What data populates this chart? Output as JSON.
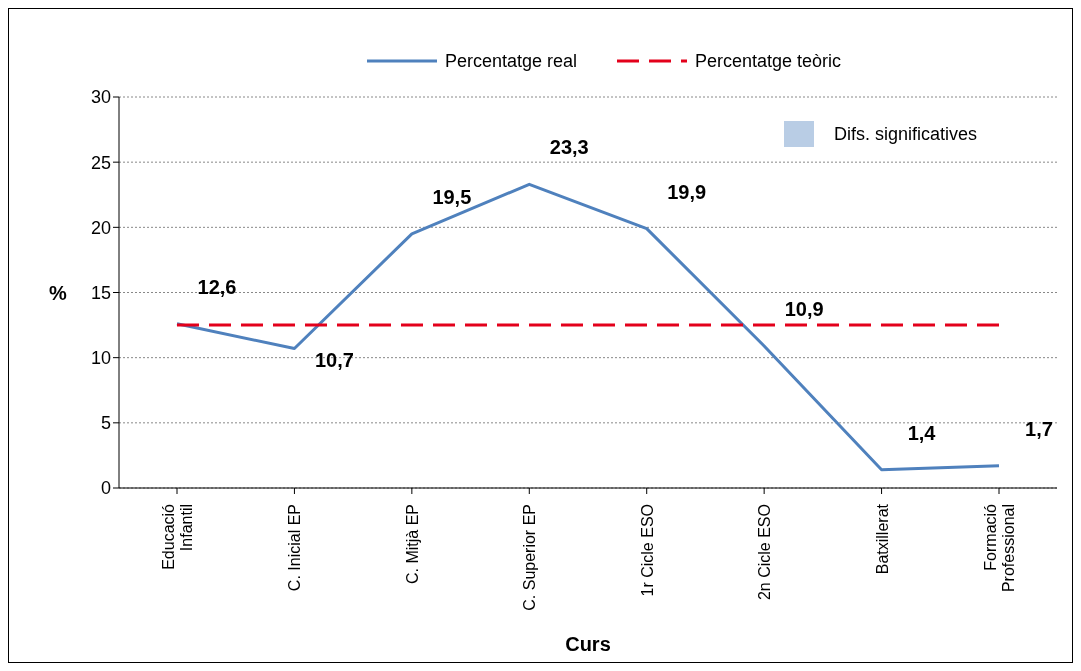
{
  "chart_data": {
    "type": "line",
    "xlabel": "Curs",
    "ylabel": "%",
    "categories": [
      "Educació Infantil",
      "C. Inicial EP",
      "C. Mitjà EP",
      "C. Superior EP",
      "1r Cicle ESO",
      "2n Cicle ESO",
      "Batxillerat",
      "Formació Professional"
    ],
    "series": [
      {
        "name": "Percentatge real",
        "color": "#4f81bd",
        "values": [
          12.6,
          10.7,
          19.5,
          23.3,
          19.9,
          10.9,
          1.4,
          1.7
        ],
        "value_labels": [
          "12,6",
          "10,7",
          "19,5",
          "23,3",
          "19,9",
          "10,9",
          "1,4",
          "1,7"
        ]
      },
      {
        "name": "Percentatge teòric",
        "color": "#e3001b",
        "line_style": "dashed",
        "values": [
          12.5,
          12.5,
          12.5,
          12.5,
          12.5,
          12.5,
          12.5,
          12.5
        ]
      }
    ],
    "ylim": [
      0,
      30
    ],
    "yticks": [
      0,
      5,
      10,
      15,
      20,
      25,
      30
    ],
    "grid": "y",
    "legend": "top",
    "marker": "none",
    "annotations": [
      "Difs. significatives"
    ]
  }
}
